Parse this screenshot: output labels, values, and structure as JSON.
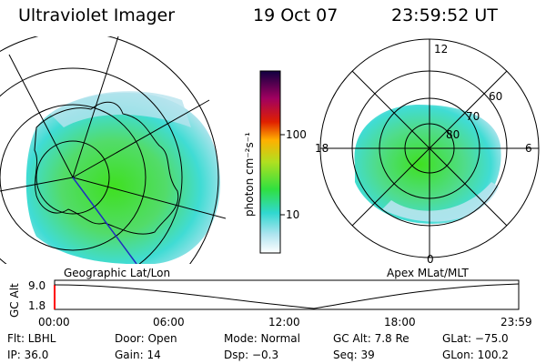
{
  "header": {
    "instrument": "Ultraviolet Imager",
    "date": "19 Oct 07",
    "time": "23:59:52 UT"
  },
  "left_map": {
    "caption": "Geographic Lat/Lon"
  },
  "right_map": {
    "caption": "Apex MLat/MLT",
    "mlt_labels": {
      "top": "12",
      "left": "18",
      "right": "6",
      "bottom": "0"
    },
    "lat_labels": [
      "60",
      "70",
      "80"
    ]
  },
  "colorbar": {
    "unit_label": "photon cm⁻²s⁻¹",
    "ticks": [
      "100",
      "10"
    ]
  },
  "altitude_plot": {
    "ylabel": "GC Alt",
    "yticks": [
      "9.0",
      "1.8"
    ],
    "xticks": [
      "00:00",
      "06:00",
      "12:00",
      "18:00",
      "23:59"
    ]
  },
  "info": {
    "row1": {
      "filter": "Flt: LBHL",
      "door": "Door: Open",
      "mode": "Mode: Normal",
      "gc_alt": "GC Alt: 7.8 Re",
      "glat": "GLat: −75.0"
    },
    "row2": {
      "ip": "IP: 36.0",
      "gain": "Gain: 14",
      "dsp": "Dsp:   −0.3",
      "seq": "Seq: 39",
      "glon": "GLon: 100.2"
    }
  },
  "colors": {
    "aurora_bright": "#3fe020",
    "aurora_mid": "#50dc8a",
    "aurora_cyan": "#40dcd4",
    "aurora_faint": "#b8e4ee",
    "line_color": "#000000",
    "limit_marker": "#ff0000"
  }
}
